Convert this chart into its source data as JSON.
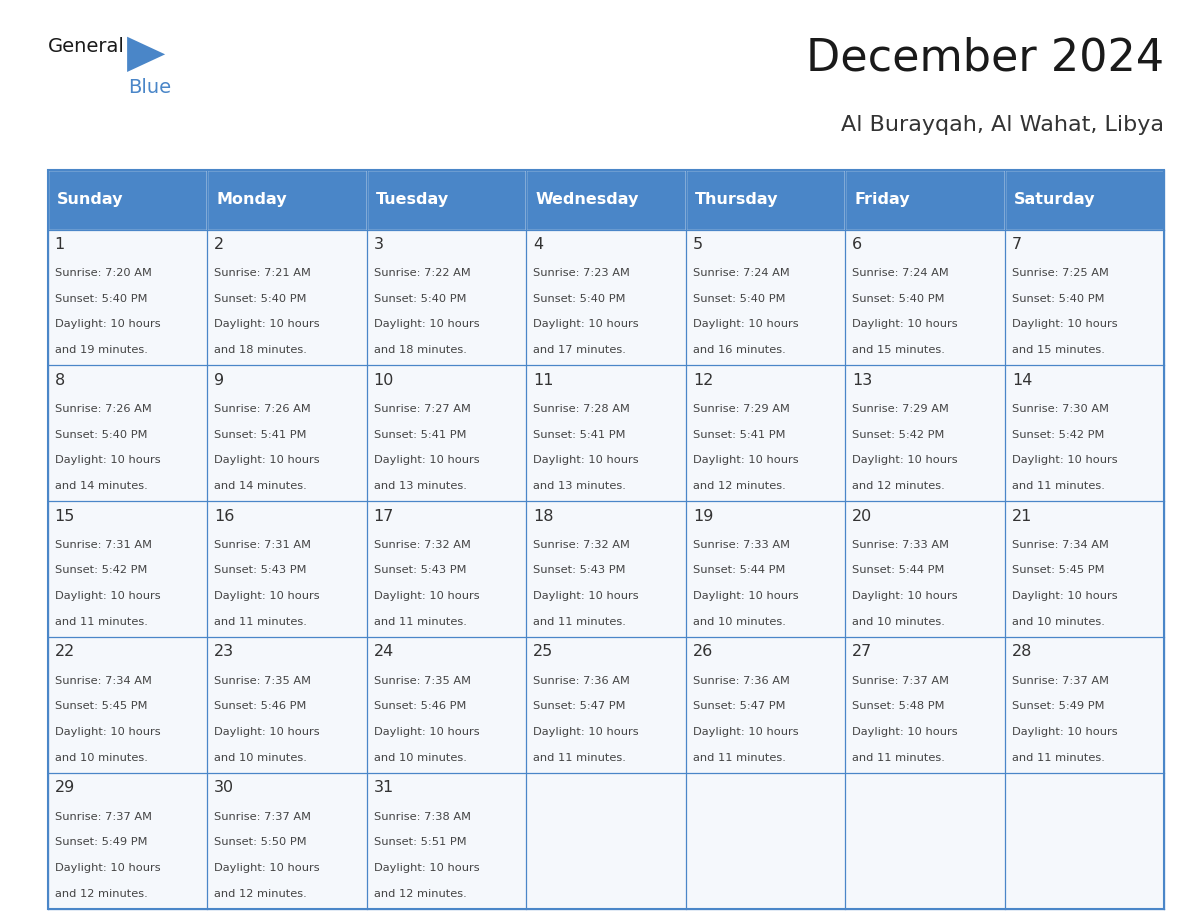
{
  "title": "December 2024",
  "subtitle": "Al Burayqah, Al Wahat, Libya",
  "days_of_week": [
    "Sunday",
    "Monday",
    "Tuesday",
    "Wednesday",
    "Thursday",
    "Friday",
    "Saturday"
  ],
  "header_bg": "#4a86c8",
  "header_text": "#ffffff",
  "border_color": "#4a86c8",
  "text_color": "#333333",
  "day_num_color": "#333333",
  "calendar_data": [
    [
      {
        "day": 1,
        "sunrise": "7:20 AM",
        "sunset": "5:40 PM",
        "daylight": "10 hours and 19 minutes."
      },
      {
        "day": 2,
        "sunrise": "7:21 AM",
        "sunset": "5:40 PM",
        "daylight": "10 hours and 18 minutes."
      },
      {
        "day": 3,
        "sunrise": "7:22 AM",
        "sunset": "5:40 PM",
        "daylight": "10 hours and 18 minutes."
      },
      {
        "day": 4,
        "sunrise": "7:23 AM",
        "sunset": "5:40 PM",
        "daylight": "10 hours and 17 minutes."
      },
      {
        "day": 5,
        "sunrise": "7:24 AM",
        "sunset": "5:40 PM",
        "daylight": "10 hours and 16 minutes."
      },
      {
        "day": 6,
        "sunrise": "7:24 AM",
        "sunset": "5:40 PM",
        "daylight": "10 hours and 15 minutes."
      },
      {
        "day": 7,
        "sunrise": "7:25 AM",
        "sunset": "5:40 PM",
        "daylight": "10 hours and 15 minutes."
      }
    ],
    [
      {
        "day": 8,
        "sunrise": "7:26 AM",
        "sunset": "5:40 PM",
        "daylight": "10 hours and 14 minutes."
      },
      {
        "day": 9,
        "sunrise": "7:26 AM",
        "sunset": "5:41 PM",
        "daylight": "10 hours and 14 minutes."
      },
      {
        "day": 10,
        "sunrise": "7:27 AM",
        "sunset": "5:41 PM",
        "daylight": "10 hours and 13 minutes."
      },
      {
        "day": 11,
        "sunrise": "7:28 AM",
        "sunset": "5:41 PM",
        "daylight": "10 hours and 13 minutes."
      },
      {
        "day": 12,
        "sunrise": "7:29 AM",
        "sunset": "5:41 PM",
        "daylight": "10 hours and 12 minutes."
      },
      {
        "day": 13,
        "sunrise": "7:29 AM",
        "sunset": "5:42 PM",
        "daylight": "10 hours and 12 minutes."
      },
      {
        "day": 14,
        "sunrise": "7:30 AM",
        "sunset": "5:42 PM",
        "daylight": "10 hours and 11 minutes."
      }
    ],
    [
      {
        "day": 15,
        "sunrise": "7:31 AM",
        "sunset": "5:42 PM",
        "daylight": "10 hours and 11 minutes."
      },
      {
        "day": 16,
        "sunrise": "7:31 AM",
        "sunset": "5:43 PM",
        "daylight": "10 hours and 11 minutes."
      },
      {
        "day": 17,
        "sunrise": "7:32 AM",
        "sunset": "5:43 PM",
        "daylight": "10 hours and 11 minutes."
      },
      {
        "day": 18,
        "sunrise": "7:32 AM",
        "sunset": "5:43 PM",
        "daylight": "10 hours and 11 minutes."
      },
      {
        "day": 19,
        "sunrise": "7:33 AM",
        "sunset": "5:44 PM",
        "daylight": "10 hours and 10 minutes."
      },
      {
        "day": 20,
        "sunrise": "7:33 AM",
        "sunset": "5:44 PM",
        "daylight": "10 hours and 10 minutes."
      },
      {
        "day": 21,
        "sunrise": "7:34 AM",
        "sunset": "5:45 PM",
        "daylight": "10 hours and 10 minutes."
      }
    ],
    [
      {
        "day": 22,
        "sunrise": "7:34 AM",
        "sunset": "5:45 PM",
        "daylight": "10 hours and 10 minutes."
      },
      {
        "day": 23,
        "sunrise": "7:35 AM",
        "sunset": "5:46 PM",
        "daylight": "10 hours and 10 minutes."
      },
      {
        "day": 24,
        "sunrise": "7:35 AM",
        "sunset": "5:46 PM",
        "daylight": "10 hours and 10 minutes."
      },
      {
        "day": 25,
        "sunrise": "7:36 AM",
        "sunset": "5:47 PM",
        "daylight": "10 hours and 11 minutes."
      },
      {
        "day": 26,
        "sunrise": "7:36 AM",
        "sunset": "5:47 PM",
        "daylight": "10 hours and 11 minutes."
      },
      {
        "day": 27,
        "sunrise": "7:37 AM",
        "sunset": "5:48 PM",
        "daylight": "10 hours and 11 minutes."
      },
      {
        "day": 28,
        "sunrise": "7:37 AM",
        "sunset": "5:49 PM",
        "daylight": "10 hours and 11 minutes."
      }
    ],
    [
      {
        "day": 29,
        "sunrise": "7:37 AM",
        "sunset": "5:49 PM",
        "daylight": "10 hours and 12 minutes."
      },
      {
        "day": 30,
        "sunrise": "7:37 AM",
        "sunset": "5:50 PM",
        "daylight": "10 hours and 12 minutes."
      },
      {
        "day": 31,
        "sunrise": "7:38 AM",
        "sunset": "5:51 PM",
        "daylight": "10 hours and 12 minutes."
      },
      null,
      null,
      null,
      null
    ]
  ]
}
